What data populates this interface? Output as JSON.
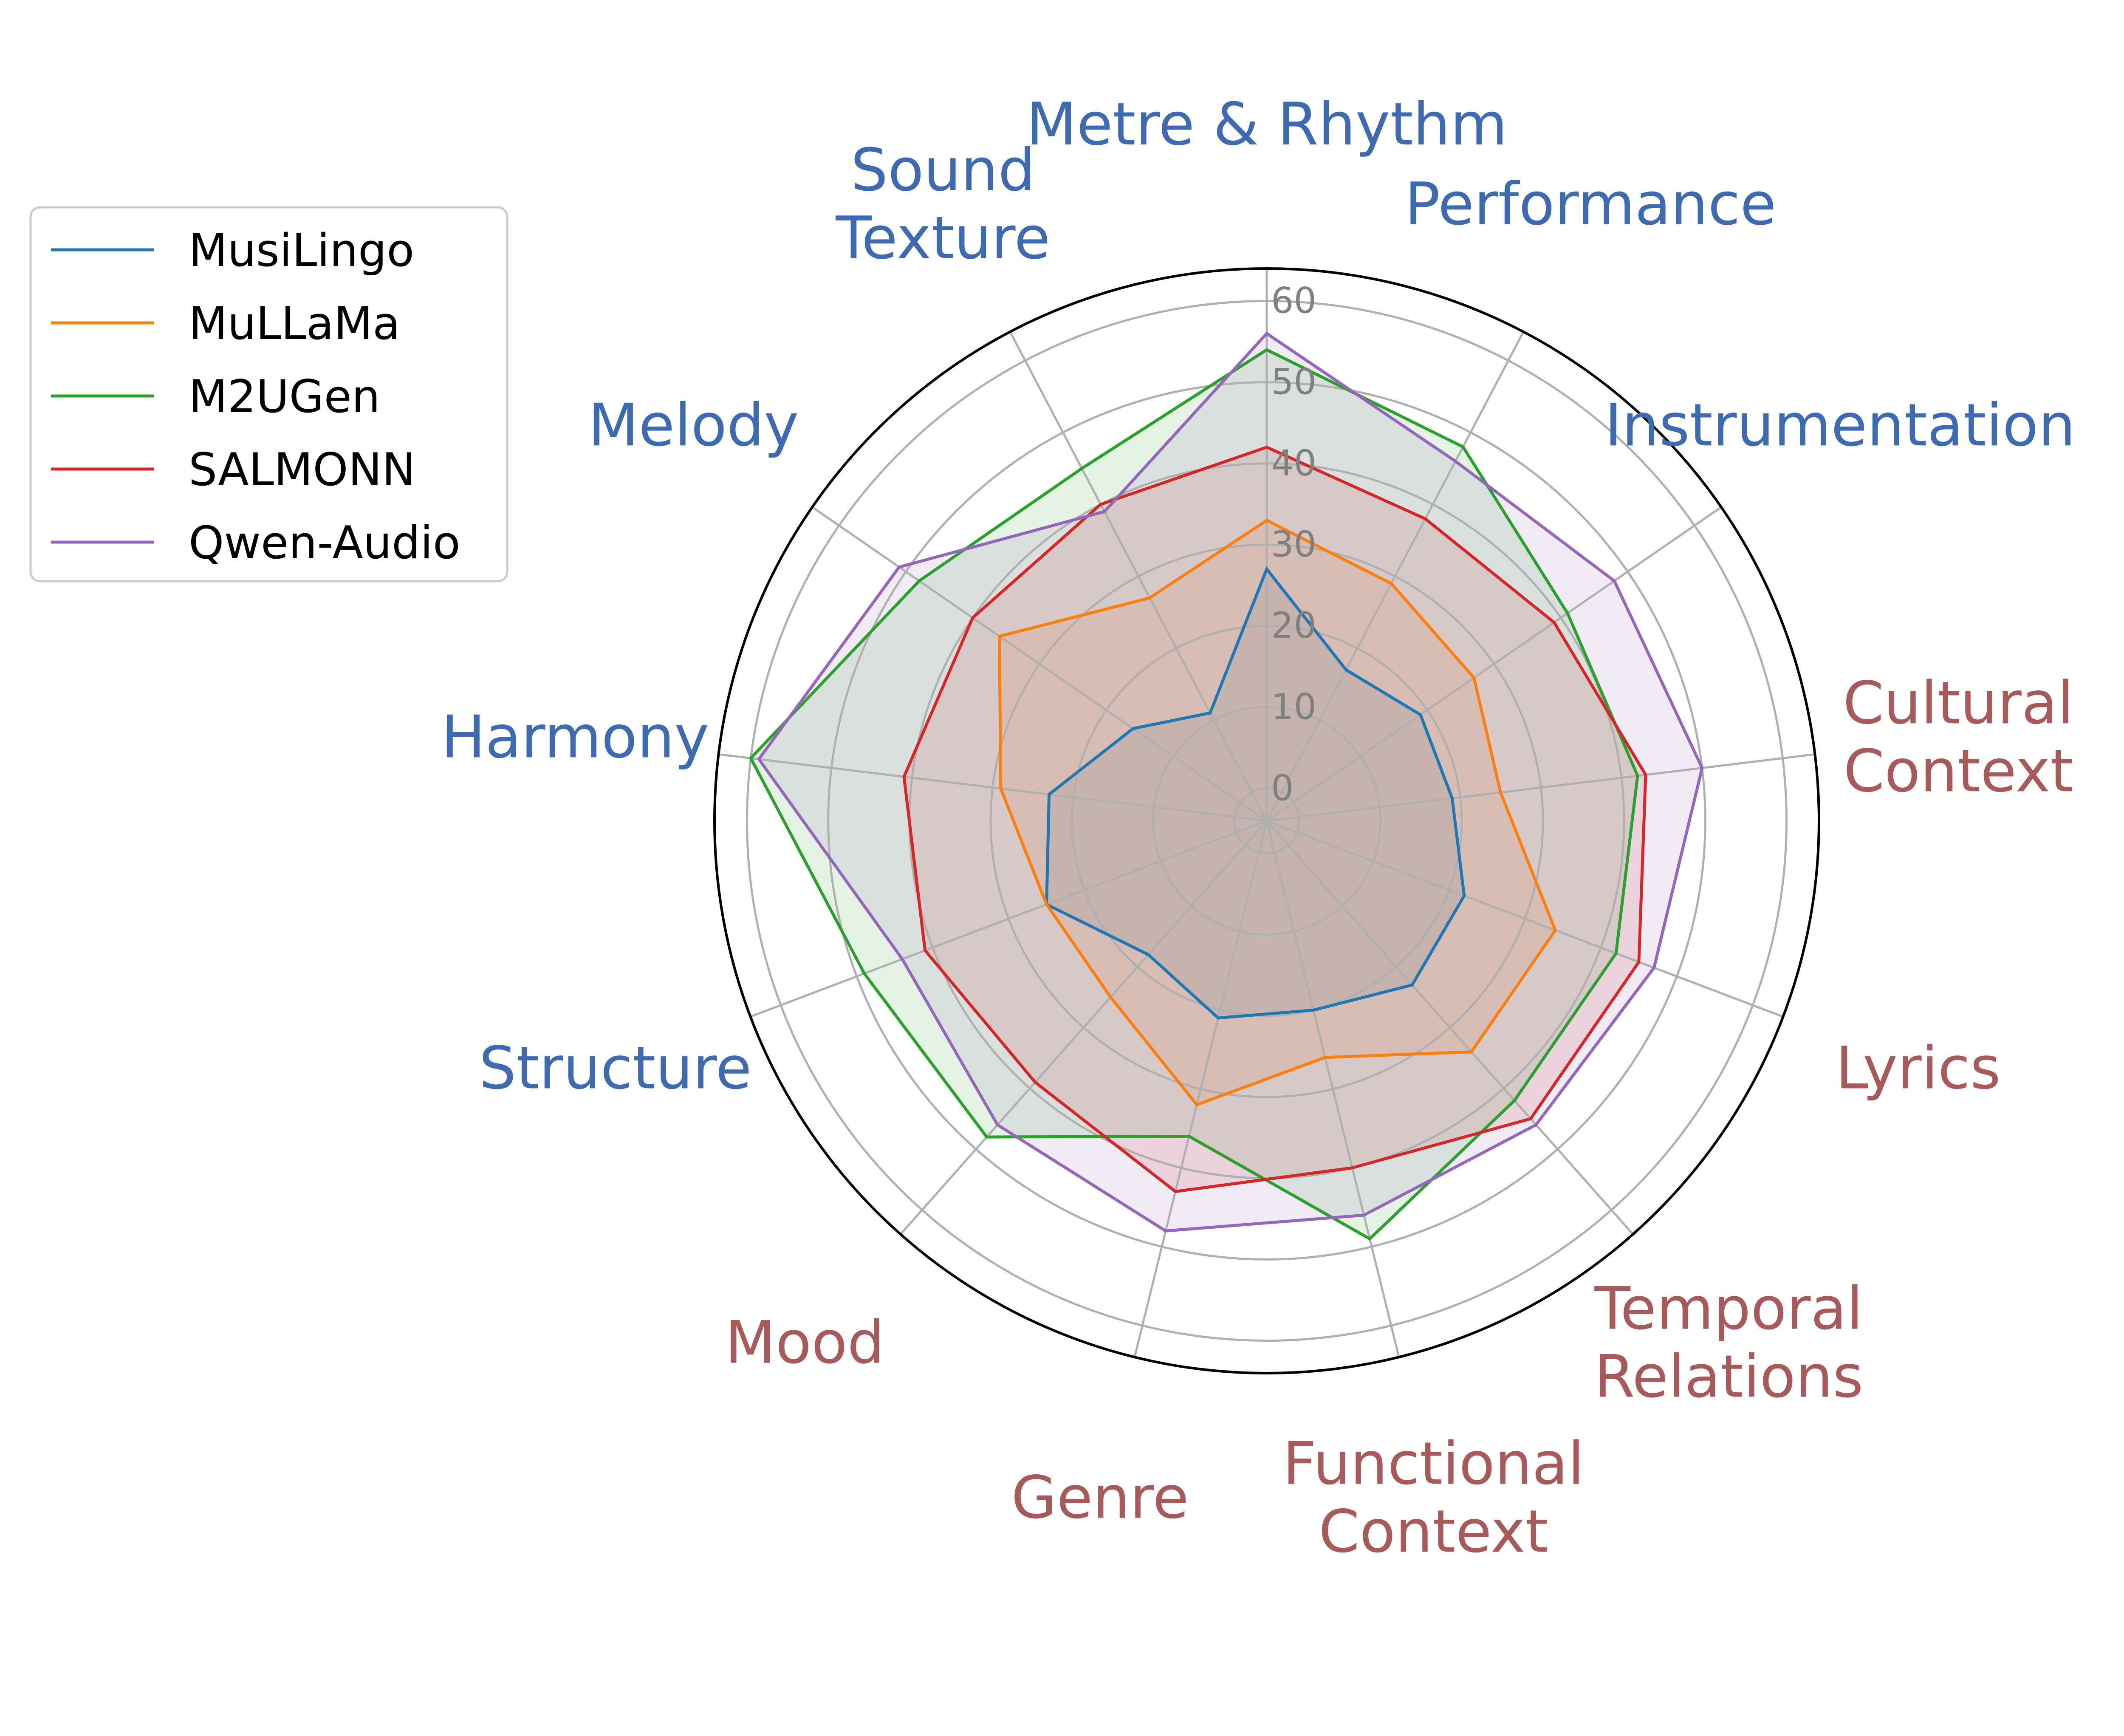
{
  "chart_data": {
    "type": "radar",
    "categories": [
      "Metre & Rhythm",
      "Performance",
      "Instrumentation",
      "Cultural\nContext",
      "Lyrics",
      "Temporal\nRelations",
      "Functional\nContext",
      "Genre",
      "Mood",
      "Structure",
      "Harmony",
      "Melody",
      "Sound\nTexture"
    ],
    "category_colors": [
      "#3d6ab0",
      "#3d6ab0",
      "#3d6ab0",
      "#a85a5a",
      "#a85a5a",
      "#a85a5a",
      "#a85a5a",
      "#a85a5a",
      "#a85a5a",
      "#3d6ab0",
      "#3d6ab0",
      "#3d6ab0",
      "#3d6ab0"
    ],
    "r_ticks": [
      0,
      10,
      20,
      30,
      40,
      50,
      60
    ],
    "rlim": [
      -4,
      64
    ],
    "grid": true,
    "legend_position": "upper-left",
    "series": [
      {
        "name": "MusiLingo",
        "color": "#1f77b4",
        "values": [
          27,
          17,
          19,
          19,
          22,
          23,
          20,
          21,
          18,
          25,
          23,
          16,
          11
        ]
      },
      {
        "name": "MuLLaMa",
        "color": "#ff7f0e",
        "values": [
          33,
          29,
          27,
          25,
          34,
          34,
          26,
          32,
          25,
          25,
          29,
          36,
          27
        ]
      },
      {
        "name": "M2UGen",
        "color": "#2ca02c",
        "values": [
          54,
          48,
          41,
          42,
          42,
          42,
          49,
          36,
          48,
          49,
          60,
          48,
          45
        ]
      },
      {
        "name": "SALMONN",
        "color": "#d62728",
        "values": [
          42,
          38,
          39,
          43,
          45,
          45,
          40,
          43,
          39,
          41,
          41,
          40,
          40
        ]
      },
      {
        "name": "Qwen-Audio",
        "color": "#9467bd",
        "values": [
          56,
          46,
          48,
          50,
          47,
          46,
          46,
          48,
          46,
          44,
          59,
          51,
          39
        ]
      }
    ],
    "fill_colors": [
      "#fce3e3",
      "#eed5ea",
      "#e6e6fa",
      "#f4a6b4"
    ]
  }
}
